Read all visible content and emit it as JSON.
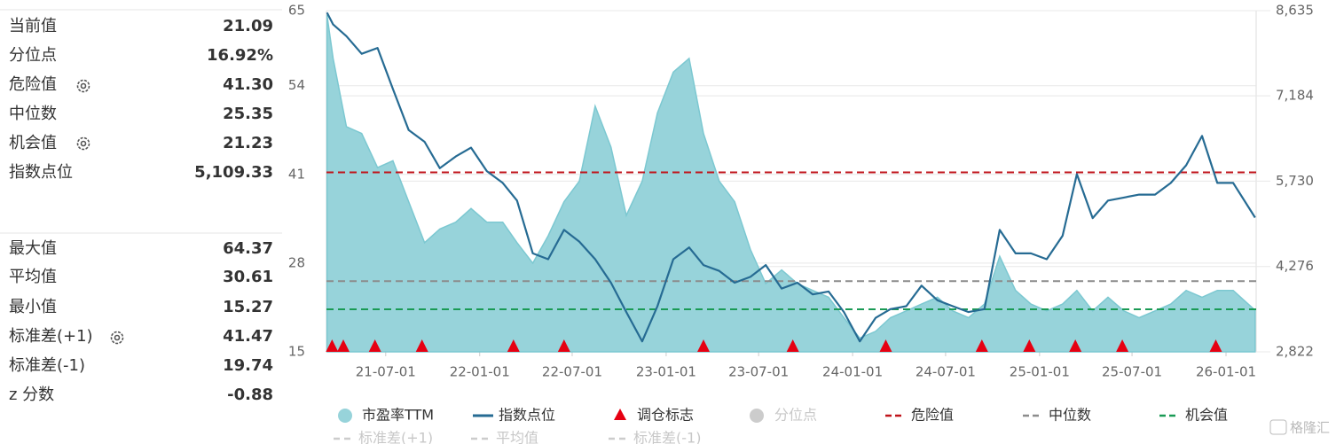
{
  "panel": {
    "top": [
      {
        "label": "当前值",
        "value": "21.09"
      },
      {
        "label": "分位点",
        "value": "16.92%"
      },
      {
        "label": "危险值",
        "value": "41.30"
      },
      {
        "label": "中位数",
        "value": "25.35"
      },
      {
        "label": "机会值",
        "value": "21.23"
      },
      {
        "label": "指数点位",
        "value": "5,109.33"
      }
    ],
    "bottom": [
      {
        "label": "最大值",
        "value": "64.37"
      },
      {
        "label": "平均值",
        "value": "30.61"
      },
      {
        "label": "最小值",
        "value": "15.27"
      },
      {
        "label": "标准差(+1)",
        "value": "41.47"
      },
      {
        "label": "标准差(-1)",
        "value": "19.74"
      },
      {
        "label": "z 分数",
        "value": "-0.88"
      }
    ]
  },
  "chart_data": {
    "type": "area_line",
    "x": [
      "21-03-08",
      "21-03-20",
      "21-04-15",
      "21-05-15",
      "21-06-15",
      "21-07-15",
      "21-08-15",
      "21-09-15",
      "21-10-15",
      "21-11-15",
      "21-12-15",
      "22-01-15",
      "22-02-15",
      "22-03-15",
      "22-04-15",
      "22-05-15",
      "22-06-15",
      "22-07-15",
      "22-08-15",
      "22-09-15",
      "22-10-15",
      "22-11-15",
      "22-12-15",
      "23-01-15",
      "23-02-15",
      "23-03-15",
      "23-04-15",
      "23-05-15",
      "23-06-15",
      "23-07-15",
      "23-08-15",
      "23-09-15",
      "23-10-15",
      "23-11-15",
      "23-12-15",
      "24-01-15",
      "24-02-15",
      "24-03-15",
      "24-04-15",
      "24-05-15",
      "24-06-15",
      "24-07-15",
      "24-08-15",
      "24-09-15",
      "24-10-15",
      "24-11-15",
      "24-12-15",
      "25-01-15",
      "25-02-15",
      "25-03-15",
      "25-04-15",
      "25-05-15",
      "25-06-15",
      "25-07-15",
      "25-08-15",
      "25-09-15",
      "25-10-15",
      "25-11-15",
      "25-12-15",
      "26-01-15",
      "26-02-27"
    ],
    "series": [
      {
        "name": "市盈率TTM",
        "color": "#97d3da",
        "axis": "y",
        "values": [
          64.37,
          58,
          48,
          47,
          42,
          43,
          37,
          31,
          33,
          34,
          36,
          34,
          34,
          31,
          28,
          32,
          37,
          40,
          51,
          45,
          35,
          40,
          50,
          56,
          58,
          47,
          40,
          37,
          30,
          25,
          27,
          25,
          24,
          23,
          20,
          17,
          18,
          20,
          21,
          22,
          23,
          21,
          20,
          22,
          29,
          24,
          22,
          21,
          22,
          24,
          21,
          23,
          21,
          20,
          21,
          22,
          24,
          23,
          24,
          24,
          21.09
        ]
      },
      {
        "name": "指数点位",
        "color": "#266b93",
        "axis": "y2",
        "values": [
          8600,
          8400,
          8200,
          7900,
          8000,
          7300,
          6600,
          6400,
          5950,
          6150,
          6300,
          5900,
          5700,
          5400,
          4500,
          4400,
          4900,
          4700,
          4400,
          4000,
          3500,
          3000,
          3600,
          4400,
          4600,
          4300,
          4200,
          4000,
          4100,
          4300,
          3900,
          4000,
          3800,
          3850,
          3500,
          3000,
          3400,
          3550,
          3600,
          3950,
          3700,
          3600,
          3500,
          3550,
          4900,
          4500,
          4500,
          4400,
          4800,
          5850,
          5100,
          5400,
          5450,
          5500,
          5500,
          5700,
          6000,
          6500,
          5700,
          5700,
          5109.33
        ]
      }
    ],
    "markers": {
      "name": "调仓标志",
      "color": "#e60012",
      "x": [
        "21-03-18",
        "21-04-09",
        "21-06-10",
        "21-09-10",
        "22-03-08",
        "22-06-15",
        "23-03-15",
        "23-09-06",
        "24-03-06",
        "24-09-10",
        "24-12-12",
        "25-03-12",
        "25-06-12",
        "25-12-12"
      ]
    },
    "reference_lines": [
      {
        "name": "危险值",
        "value": 41.3,
        "color": "#c0141b"
      },
      {
        "name": "中位数",
        "value": 25.35,
        "color": "#8c8c8c"
      },
      {
        "name": "机会值",
        "value": 21.23,
        "color": "#1a9a55"
      }
    ],
    "legend_inactive": [
      "分位点",
      "标准差(+1)",
      "平均值",
      "标准差(-1)"
    ],
    "xlim": [
      "21-03-07",
      "26-03-01"
    ],
    "xticks": [
      "21-07-01",
      "22-01-01",
      "22-07-01",
      "23-01-01",
      "23-07-01",
      "24-01-01",
      "24-07-01",
      "25-01-01",
      "25-07-01",
      "26-01-01"
    ],
    "ylim": [
      15,
      65
    ],
    "yticks": [
      15,
      28,
      41,
      54,
      65
    ],
    "y2lim": [
      2822,
      8635
    ],
    "y2ticks": [
      {
        "value": 2822,
        "label": "2,822"
      },
      {
        "value": 4276,
        "label": "4,276"
      },
      {
        "value": 5730,
        "label": "5,730"
      },
      {
        "value": 7184,
        "label": "7,184"
      },
      {
        "value": 8635,
        "label": "8,635"
      }
    ],
    "grid": true,
    "watermark": "格隆汇"
  }
}
